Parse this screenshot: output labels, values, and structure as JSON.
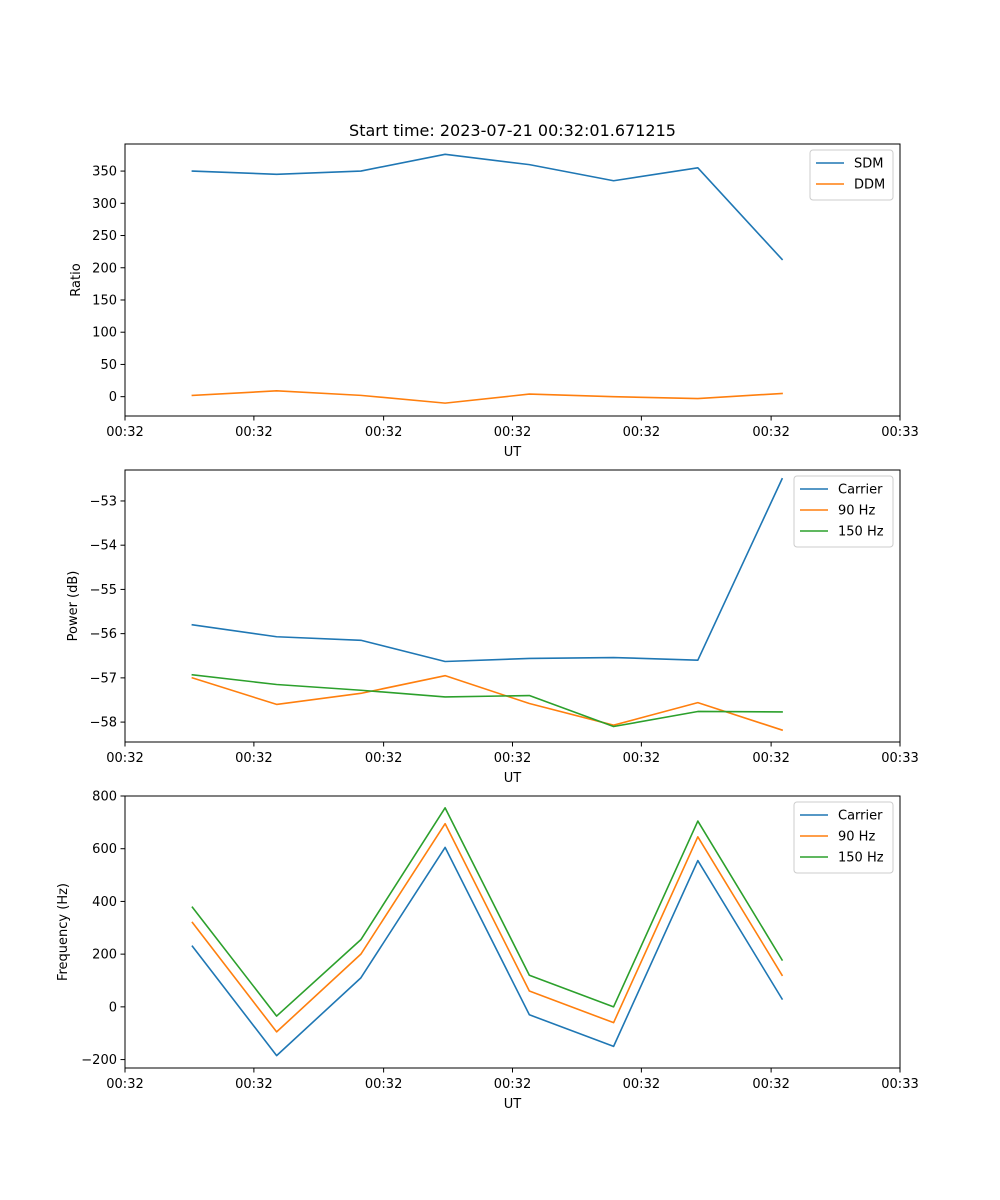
{
  "figure": {
    "title": "Start time: 2023-07-21 00:32:01.671215"
  },
  "colors": {
    "c0": "#1f77b4",
    "c1": "#ff7f0e",
    "c2": "#2ca02c"
  },
  "chart_data": [
    {
      "type": "line",
      "title": "Start time: 2023-07-21 00:32:01.671215",
      "xlabel": "UT",
      "ylabel": "Ratio",
      "x": [
        1,
        2,
        3,
        4,
        5,
        6,
        7,
        8
      ],
      "xlim": [
        0.2,
        9.4
      ],
      "ylim": [
        -30,
        392
      ],
      "xticks": [
        0.2,
        1.73,
        3.27,
        4.8,
        6.33,
        7.87,
        9.4
      ],
      "xticklabels": [
        "00:32",
        "00:32",
        "00:32",
        "00:32",
        "00:32",
        "00:32",
        "00:33"
      ],
      "yticks": [
        0,
        50,
        100,
        150,
        200,
        250,
        300,
        350
      ],
      "yticklabels": [
        "0",
        "50",
        "100",
        "150",
        "200",
        "250",
        "300",
        "350"
      ],
      "legend_loc": "upper right",
      "series": [
        {
          "name": "SDM",
          "color_key": "c0",
          "values": [
            350,
            345,
            350,
            376,
            360,
            335,
            355,
            213
          ]
        },
        {
          "name": "DDM",
          "color_key": "c1",
          "values": [
            2,
            9,
            2,
            -10,
            4,
            0,
            -3,
            5
          ]
        }
      ]
    },
    {
      "type": "line",
      "title": "",
      "xlabel": "UT",
      "ylabel": "Power (dB)",
      "x": [
        1,
        2,
        3,
        4,
        5,
        6,
        7,
        8
      ],
      "xlim": [
        0.2,
        9.4
      ],
      "ylim": [
        -58.45,
        -52.3
      ],
      "xticks": [
        0.2,
        1.73,
        3.27,
        4.8,
        6.33,
        7.87,
        9.4
      ],
      "xticklabels": [
        "00:32",
        "00:32",
        "00:32",
        "00:32",
        "00:32",
        "00:32",
        "00:33"
      ],
      "yticks": [
        -58,
        -57,
        -56,
        -55,
        -54,
        -53
      ],
      "yticklabels": [
        "−58",
        "−57",
        "−56",
        "−55",
        "−54",
        "−53"
      ],
      "legend_loc": "upper right",
      "series": [
        {
          "name": "Carrier",
          "color_key": "c0",
          "values": [
            -55.8,
            -56.07,
            -56.15,
            -56.63,
            -56.56,
            -56.54,
            -56.6,
            -52.5
          ]
        },
        {
          "name": "90 Hz",
          "color_key": "c1",
          "values": [
            -57.0,
            -57.6,
            -57.35,
            -56.95,
            -57.58,
            -58.07,
            -57.56,
            -58.18
          ]
        },
        {
          "name": "150 Hz",
          "color_key": "c2",
          "values": [
            -56.93,
            -57.15,
            -57.28,
            -57.43,
            -57.4,
            -58.1,
            -57.76,
            -57.77
          ]
        }
      ]
    },
    {
      "type": "line",
      "title": "",
      "xlabel": "UT",
      "ylabel": "Frequency (Hz)",
      "x": [
        1,
        2,
        3,
        4,
        5,
        6,
        7,
        8
      ],
      "xlim": [
        0.2,
        9.4
      ],
      "ylim": [
        -232,
        800
      ],
      "xticks": [
        0.2,
        1.73,
        3.27,
        4.8,
        6.33,
        7.87,
        9.4
      ],
      "xticklabels": [
        "00:32",
        "00:32",
        "00:32",
        "00:32",
        "00:32",
        "00:32",
        "00:33"
      ],
      "yticks": [
        -200,
        0,
        200,
        400,
        600,
        800
      ],
      "yticklabels": [
        "−200",
        "0",
        "200",
        "400",
        "600",
        "800"
      ],
      "legend_loc": "upper right",
      "series": [
        {
          "name": "Carrier",
          "color_key": "c0",
          "values": [
            230,
            -185,
            110,
            605,
            -30,
            -150,
            555,
            30
          ]
        },
        {
          "name": "90 Hz",
          "color_key": "c1",
          "values": [
            320,
            -95,
            200,
            695,
            60,
            -60,
            645,
            120
          ]
        },
        {
          "name": "150 Hz",
          "color_key": "c2",
          "values": [
            378,
            -35,
            255,
            755,
            120,
            0,
            705,
            178
          ]
        }
      ]
    }
  ]
}
